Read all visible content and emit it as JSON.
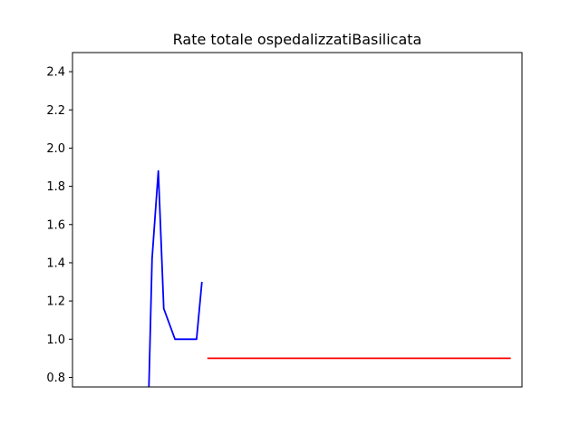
{
  "chart_data": {
    "type": "line",
    "title": "Rate totale ospedalizzatiBasilicata",
    "xlabel": "",
    "ylabel": "",
    "ylim": [
      0.75,
      2.5
    ],
    "xlim": [
      0,
      100
    ],
    "y_ticks": [
      "0.8",
      "1.0",
      "1.2",
      "1.4",
      "1.6",
      "1.8",
      "2.0",
      "2.2",
      "2.4"
    ],
    "x_ticks": [],
    "grid": false,
    "series": [
      {
        "color": "#0000ff",
        "x": [
          17,
          17.7,
          19.1,
          20.3,
          22.8,
          27.6,
          28.8
        ],
        "y": [
          0.75,
          1.42,
          1.88,
          1.16,
          1.0,
          1.0,
          1.3
        ]
      },
      {
        "color": "#ff0000",
        "x": [
          30,
          97.5
        ],
        "y": [
          0.9,
          0.9
        ]
      }
    ]
  }
}
